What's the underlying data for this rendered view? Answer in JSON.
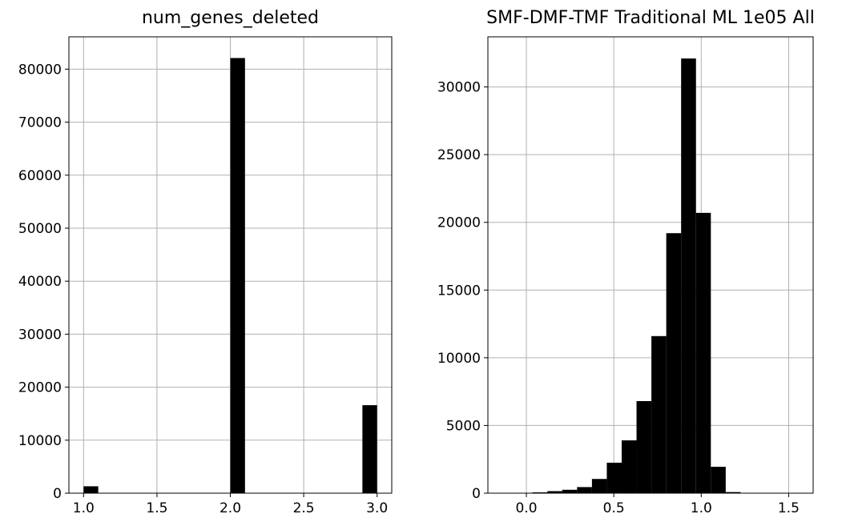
{
  "chart_data": [
    {
      "type": "bar",
      "title": "num_genes_deleted",
      "xlabel": "",
      "ylabel": "",
      "grid": true,
      "xlim": [
        0.9,
        3.1
      ],
      "ylim": [
        0,
        86100
      ],
      "xticks": [
        1.0,
        1.5,
        2.0,
        2.5,
        3.0
      ],
      "xtick_labels": [
        "1.0",
        "1.5",
        "2.0",
        "2.5",
        "3.0"
      ],
      "yticks": [
        0,
        10000,
        20000,
        30000,
        40000,
        50000,
        60000,
        70000,
        80000
      ],
      "ytick_labels": [
        "0",
        "10000",
        "20000",
        "30000",
        "40000",
        "50000",
        "60000",
        "70000",
        "80000"
      ],
      "bins": [
        {
          "x0": 1.0,
          "x1": 1.1,
          "count": 1300
        },
        {
          "x0": 2.0,
          "x1": 2.1,
          "count": 82100
        },
        {
          "x0": 2.9,
          "x1": 3.0,
          "count": 16600
        }
      ]
    },
    {
      "type": "bar",
      "title": "SMF-DMF-TMF Traditional ML 1e05 All",
      "xlabel": "",
      "ylabel": "",
      "grid": true,
      "xlim": [
        -0.22,
        1.64
      ],
      "ylim": [
        0,
        33700
      ],
      "xticks": [
        0.0,
        0.5,
        1.0,
        1.5
      ],
      "xtick_labels": [
        "0.0",
        "0.5",
        "1.0",
        "1.5"
      ],
      "yticks": [
        0,
        5000,
        10000,
        15000,
        20000,
        25000,
        30000
      ],
      "ytick_labels": [
        "0",
        "5000",
        "10000",
        "15000",
        "20000",
        "25000",
        "30000"
      ],
      "bins": [
        {
          "x0": -0.05,
          "x1": 0.035,
          "count": 30
        },
        {
          "x0": 0.035,
          "x1": 0.12,
          "count": 60
        },
        {
          "x0": 0.12,
          "x1": 0.205,
          "count": 150
        },
        {
          "x0": 0.205,
          "x1": 0.29,
          "count": 250
        },
        {
          "x0": 0.29,
          "x1": 0.375,
          "count": 450
        },
        {
          "x0": 0.375,
          "x1": 0.46,
          "count": 1050
        },
        {
          "x0": 0.46,
          "x1": 0.545,
          "count": 2250
        },
        {
          "x0": 0.545,
          "x1": 0.63,
          "count": 3900
        },
        {
          "x0": 0.63,
          "x1": 0.715,
          "count": 6800
        },
        {
          "x0": 0.715,
          "x1": 0.8,
          "count": 11600
        },
        {
          "x0": 0.8,
          "x1": 0.885,
          "count": 19200
        },
        {
          "x0": 0.885,
          "x1": 0.97,
          "count": 32100
        },
        {
          "x0": 0.97,
          "x1": 1.055,
          "count": 20700
        },
        {
          "x0": 1.055,
          "x1": 1.14,
          "count": 1950
        },
        {
          "x0": 1.14,
          "x1": 1.225,
          "count": 80
        },
        {
          "x0": 1.225,
          "x1": 1.31,
          "count": 10
        }
      ]
    }
  ]
}
